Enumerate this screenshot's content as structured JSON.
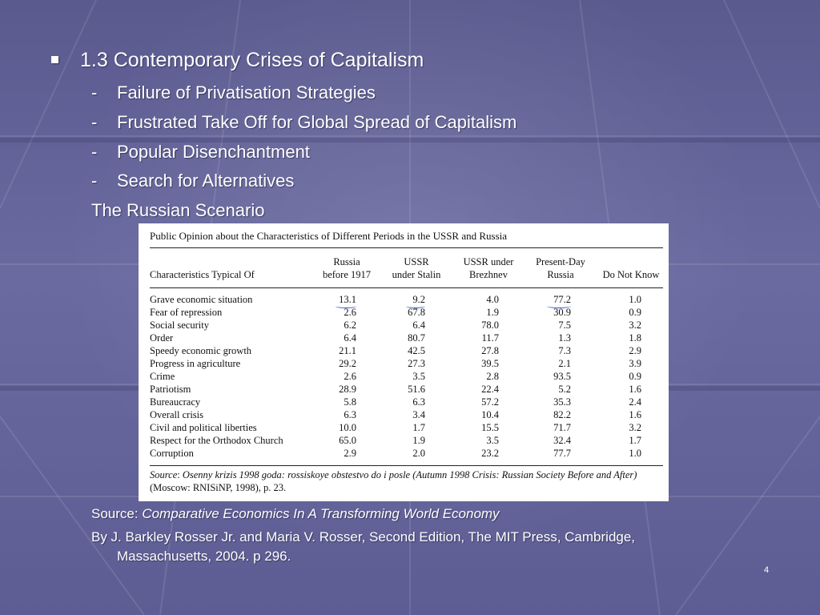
{
  "heading": "1.3  Contemporary Crises of Capitalism",
  "subpoints": [
    "Failure of Privatisation Strategies",
    "Frustrated Take Off for Global Spread of Capitalism",
    "Popular Disenchantment",
    "Search for Alternatives"
  ],
  "scenario": "The Russian Scenario",
  "table": {
    "title": "Public Opinion about the Characteristics of Different Periods in the USSR and Russia",
    "row_header": "Characteristics Typical Of",
    "columns": [
      {
        "line1": "Russia",
        "line2": "before 1917"
      },
      {
        "line1": "USSR",
        "line2": "under Stalin"
      },
      {
        "line1": "USSR under",
        "line2": "Brezhnev"
      },
      {
        "line1": "Present-Day",
        "line2": "Russia"
      },
      {
        "line1": "",
        "line2": "Do Not Know"
      }
    ],
    "rows": [
      {
        "label": "Grave economic situation",
        "values": [
          "13.1",
          "9.2",
          "4.0",
          "77.2",
          "1.0"
        ]
      },
      {
        "label": "Fear of repression",
        "values": [
          "2.6",
          "67.8",
          "1.9",
          "30.9",
          "0.9"
        ]
      },
      {
        "label": "Social security",
        "values": [
          "6.2",
          "6.4",
          "78.0",
          "7.5",
          "3.2"
        ]
      },
      {
        "label": "Order",
        "values": [
          "6.4",
          "80.7",
          "11.7",
          "1.3",
          "1.8"
        ]
      },
      {
        "label": "Speedy economic growth",
        "values": [
          "21.1",
          "42.5",
          "27.8",
          "7.3",
          "2.9"
        ]
      },
      {
        "label": "Progress in agriculture",
        "values": [
          "29.2",
          "27.3",
          "39.5",
          "2.1",
          "3.9"
        ]
      },
      {
        "label": "Crime",
        "values": [
          "2.6",
          "3.5",
          "2.8",
          "93.5",
          "0.9"
        ]
      },
      {
        "label": "Patriotism",
        "values": [
          "28.9",
          "51.6",
          "22.4",
          "5.2",
          "1.6"
        ]
      },
      {
        "label": "Bureaucracy",
        "values": [
          "5.8",
          "6.3",
          "57.2",
          "35.3",
          "2.4"
        ]
      },
      {
        "label": "Overall crisis",
        "values": [
          "6.3",
          "3.4",
          "10.4",
          "82.2",
          "1.6"
        ]
      },
      {
        "label": "Civil and political liberties",
        "values": [
          "10.0",
          "1.7",
          "15.5",
          "71.7",
          "3.2"
        ]
      },
      {
        "label": "Respect for the Orthodox Church",
        "values": [
          "65.0",
          "1.9",
          "3.5",
          "32.4",
          "1.7"
        ]
      },
      {
        "label": "Corruption",
        "values": [
          "2.9",
          "2.0",
          "23.2",
          "77.7",
          "1.0"
        ]
      }
    ],
    "source_label": "Source",
    "source_italic": "Osenny krizis 1998 goda: rossiskoye obstestvo do i posle (Autumn 1998 Crisis: Russian Society Before and After)",
    "source_rest": " (Moscow: RNISiNP, 1998), p. 23."
  },
  "citation": {
    "source_label": "Source: ",
    "source_title": "Comparative Economics In A Transforming World Economy",
    "line": "By J. Barkley Rosser Jr. and Maria V. Rosser, Second Edition, The MIT Press, Cambridge,",
    "line_cont": "Massachusetts, 2004. p 296."
  },
  "page_number": "4",
  "colors": {
    "background": "#5f5f96",
    "text": "#ffffff",
    "underline": "#2a4fd0"
  }
}
